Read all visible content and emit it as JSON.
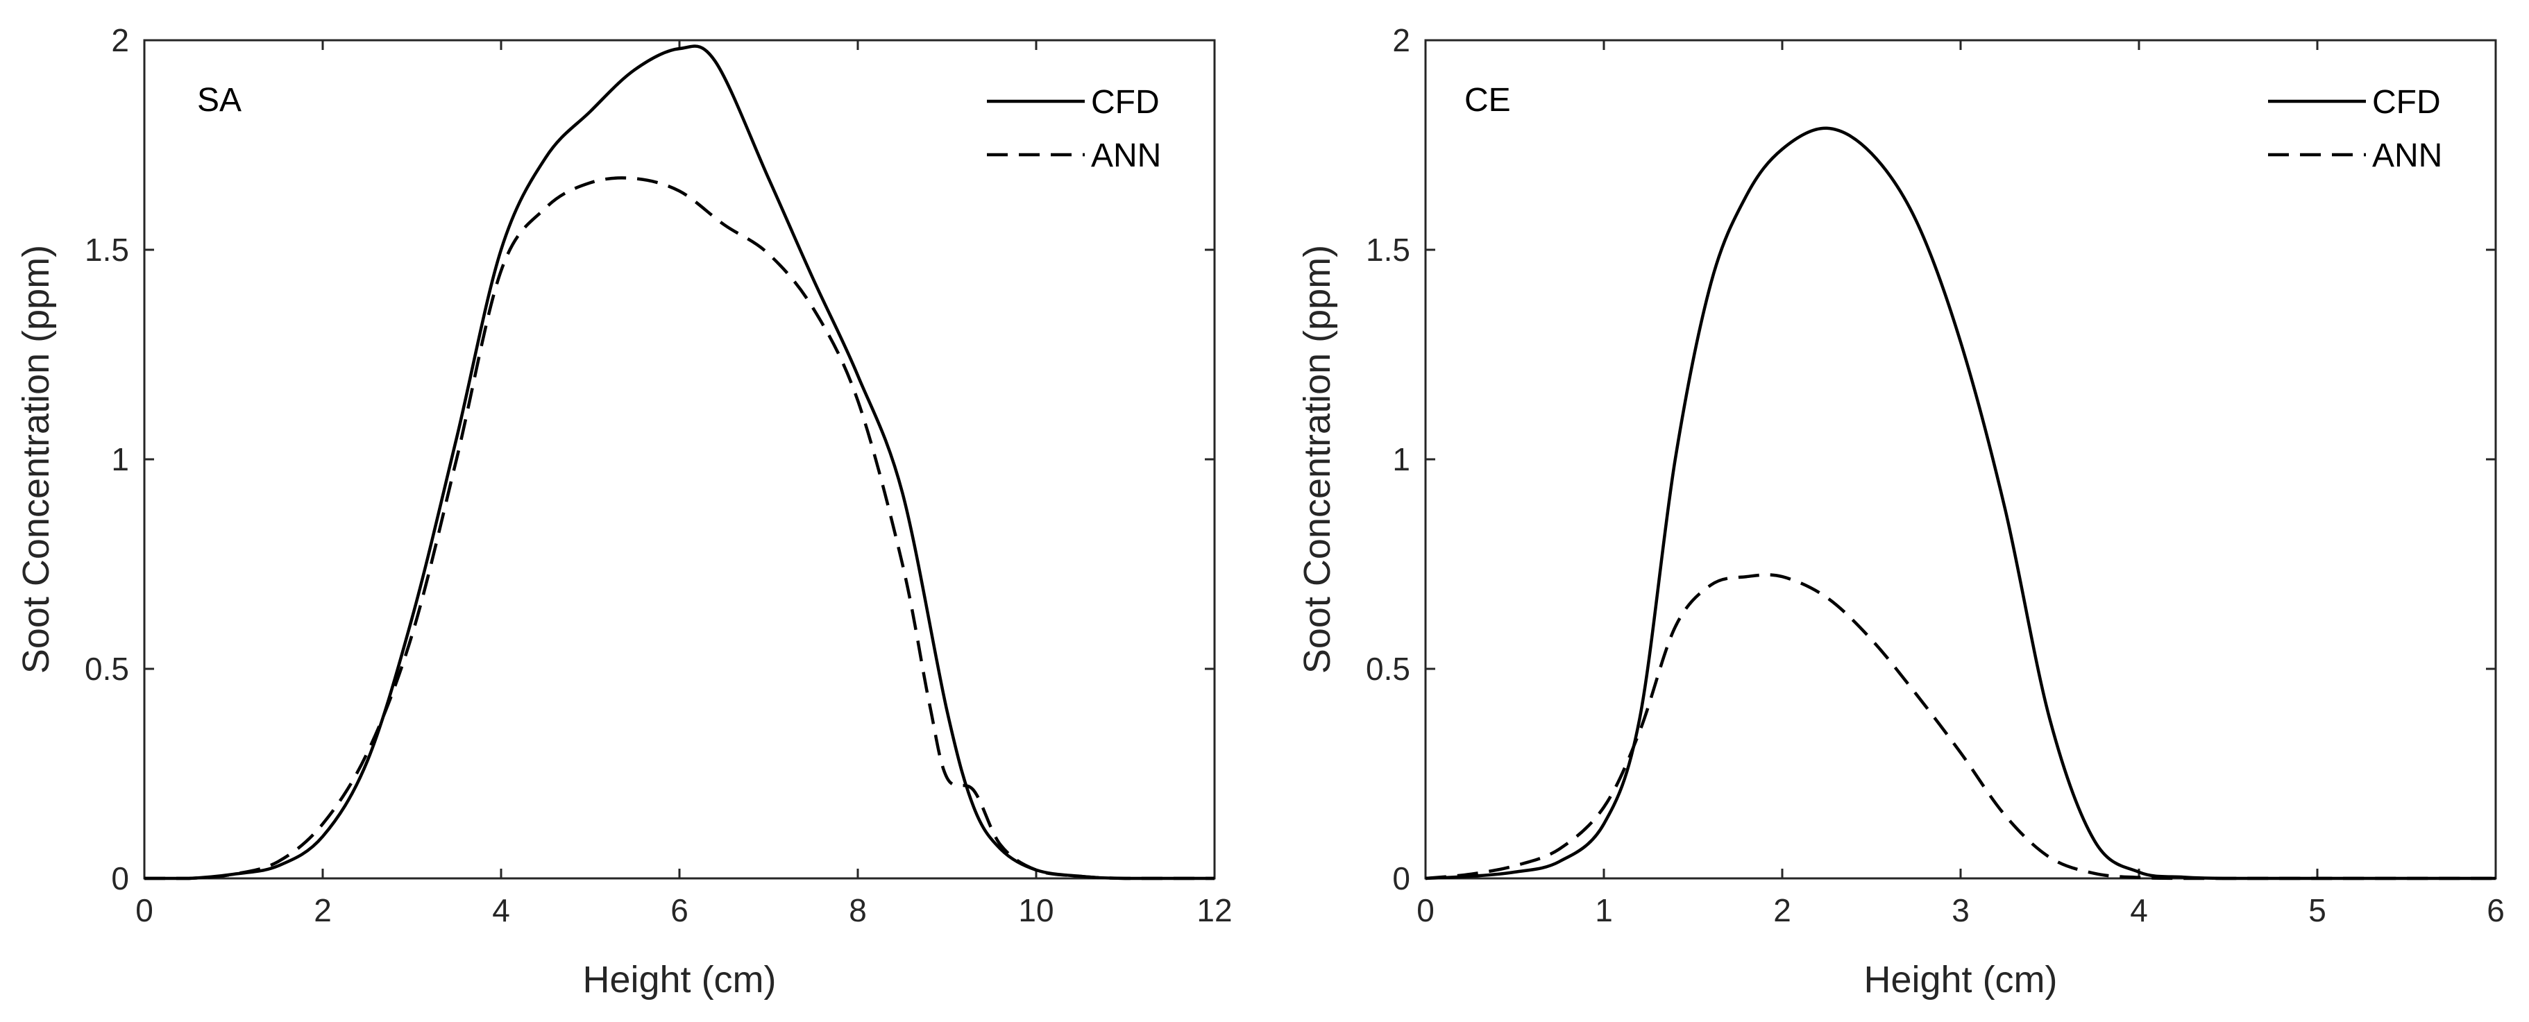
{
  "chart_data": [
    {
      "type": "line",
      "panel_label": "SA",
      "xlabel": "Height (cm)",
      "ylabel": "Soot Concentration (ppm)",
      "xlim": [
        0,
        12
      ],
      "ylim": [
        0,
        2
      ],
      "xticks": [
        0,
        2,
        4,
        6,
        8,
        10,
        12
      ],
      "yticks": [
        0,
        0.5,
        1,
        1.5,
        2
      ],
      "xtick_labels": [
        "0",
        "2",
        "4",
        "6",
        "8",
        "10",
        "12"
      ],
      "ytick_labels": [
        "0",
        "0.5",
        "1",
        "1.5",
        "2"
      ],
      "legend_position": "top-right",
      "grid": false,
      "series": [
        {
          "name": "CFD",
          "style": "solid",
          "x": [
            0,
            0.5,
            1.0,
            1.5,
            2.0,
            2.5,
            3.0,
            3.5,
            4.0,
            4.5,
            5.0,
            5.5,
            6.0,
            6.4,
            7.0,
            7.5,
            8.0,
            8.5,
            9.0,
            9.3,
            9.6,
            10.0,
            10.5,
            11,
            12
          ],
          "y": [
            0,
            0,
            0.01,
            0.03,
            0.1,
            0.28,
            0.62,
            1.05,
            1.5,
            1.72,
            1.83,
            1.93,
            1.98,
            1.95,
            1.67,
            1.43,
            1.2,
            0.92,
            0.4,
            0.17,
            0.07,
            0.02,
            0.005,
            0,
            0
          ]
        },
        {
          "name": "ANN",
          "style": "dashed",
          "x": [
            0,
            0.5,
            1.0,
            1.5,
            2.0,
            2.5,
            3.0,
            3.5,
            4.0,
            4.5,
            5.0,
            5.5,
            6.0,
            6.5,
            7.0,
            7.5,
            8.0,
            8.5,
            8.8,
            9.0,
            9.3,
            9.6,
            10.0,
            10.5,
            11,
            12
          ],
          "y": [
            0,
            0,
            0.01,
            0.04,
            0.13,
            0.3,
            0.58,
            1.0,
            1.45,
            1.6,
            1.66,
            1.67,
            1.64,
            1.56,
            1.49,
            1.36,
            1.14,
            0.75,
            0.42,
            0.24,
            0.21,
            0.08,
            0.02,
            0.005,
            0,
            0
          ]
        }
      ]
    },
    {
      "type": "line",
      "panel_label": "CE",
      "xlabel": "Height (cm)",
      "ylabel": "Soot Concentration (ppm)",
      "xlim": [
        0,
        6
      ],
      "ylim": [
        0,
        2
      ],
      "xticks": [
        0,
        1,
        2,
        3,
        4,
        5,
        6
      ],
      "yticks": [
        0,
        0.5,
        1,
        1.5,
        2
      ],
      "xtick_labels": [
        "0",
        "1",
        "2",
        "3",
        "4",
        "5",
        "6"
      ],
      "ytick_labels": [
        "0",
        "0.5",
        "1",
        "1.5",
        "2"
      ],
      "legend_position": "top-right",
      "grid": false,
      "series": [
        {
          "name": "CFD",
          "style": "solid",
          "x": [
            0,
            0.25,
            0.5,
            0.75,
            1.0,
            1.2,
            1.4,
            1.6,
            1.8,
            2.0,
            2.25,
            2.5,
            2.75,
            3.0,
            3.25,
            3.5,
            3.75,
            4.0,
            4.25,
            4.5,
            5,
            6
          ],
          "y": [
            0,
            0.005,
            0.015,
            0.04,
            0.13,
            0.38,
            1.0,
            1.42,
            1.63,
            1.74,
            1.79,
            1.73,
            1.57,
            1.28,
            0.88,
            0.38,
            0.09,
            0.015,
            0.003,
            0,
            0,
            0
          ],
          "comment": null
        },
        {
          "name": "ANN",
          "style": "dashed",
          "x": [
            0,
            0.25,
            0.5,
            0.75,
            1.0,
            1.2,
            1.4,
            1.6,
            1.8,
            2.0,
            2.25,
            2.5,
            2.75,
            3.0,
            3.25,
            3.5,
            3.75,
            4.0,
            4.25,
            4.5,
            5,
            6
          ],
          "y": [
            0,
            0.01,
            0.03,
            0.07,
            0.17,
            0.35,
            0.6,
            0.7,
            0.72,
            0.72,
            0.67,
            0.57,
            0.44,
            0.3,
            0.15,
            0.05,
            0.012,
            0.002,
            0,
            0,
            0,
            0
          ]
        }
      ]
    }
  ]
}
